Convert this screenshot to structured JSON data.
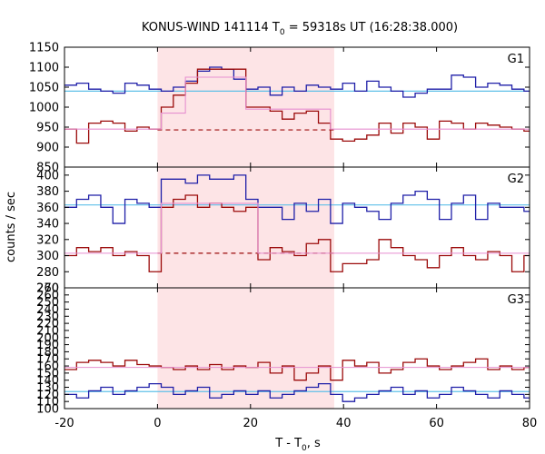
{
  "chart_data": {
    "type": "line",
    "title_main": "KONUS-WIND 141114 T",
    "title_sub": "0",
    "title_rest": " = 59318s UT (16:28:38.000)",
    "xlabel_main": "T - T",
    "xlabel_sub": "0",
    "xlabel_rest": ", s",
    "ylabel": "counts / sec",
    "xlim": [
      -20,
      80
    ],
    "x_ticks": [
      -20,
      0,
      20,
      40,
      60,
      80
    ],
    "shaded_interval": [
      0,
      38
    ],
    "bin_edges": [
      -20,
      -17.4,
      -14.8,
      -12.2,
      -9.6,
      -7,
      -4.4,
      -1.8,
      0.8,
      3.4,
      6,
      8.6,
      11.2,
      13.8,
      16.4,
      19,
      21.6,
      24.2,
      26.8,
      29.4,
      32,
      34.6,
      37.2,
      39.8,
      42.4,
      45,
      47.6,
      50.2,
      52.8,
      55.4,
      58,
      60.6,
      63.2,
      65.8,
      68.4,
      71,
      73.6,
      76.2,
      78.8,
      80
    ],
    "colors": {
      "blue": "#1f1fa8",
      "red": "#9b0a0a",
      "light_blue": "#5fc0e8",
      "pink": "#e68fd0",
      "shade": "#fde4e6"
    },
    "panels": [
      {
        "name": "G1",
        "ylim": [
          850,
          1150
        ],
        "y_ticks": [
          850,
          900,
          950,
          1000,
          1050,
          1100,
          1150
        ],
        "series": [
          {
            "color": "blue",
            "values": [
              1055,
              1060,
              1045,
              1040,
              1035,
              1060,
              1055,
              1045,
              1040,
              1050,
              1065,
              1090,
              1100,
              1095,
              1070,
              1045,
              1050,
              1030,
              1050,
              1040,
              1055,
              1050,
              1045,
              1060,
              1040,
              1065,
              1050,
              1040,
              1025,
              1035,
              1045,
              1045,
              1080,
              1075,
              1050,
              1060,
              1055,
              1045,
              1040
            ]
          },
          {
            "color": "red",
            "values": [
              945,
              910,
              960,
              965,
              960,
              940,
              950,
              945,
              1000,
              1030,
              1060,
              1095,
              1095,
              1095,
              1095,
              1000,
              1000,
              990,
              970,
              985,
              990,
              960,
              920,
              915,
              920,
              930,
              960,
              935,
              960,
              950,
              920,
              965,
              960,
              945,
              960,
              955,
              950,
              945,
              940
            ]
          },
          {
            "color": "pink",
            "values": [
              945,
              945,
              945,
              945,
              945,
              945,
              945,
              945,
              985,
              985,
              1075,
              1075,
              1075,
              1075,
              1075,
              995,
              995,
              995,
              995,
              995,
              995,
              995,
              945,
              945,
              945,
              945,
              945,
              945,
              945,
              945,
              945,
              945,
              945,
              945,
              945,
              945,
              945,
              945,
              945
            ]
          }
        ],
        "lines": [
          {
            "color": "light_blue",
            "y": 1040,
            "x": [
              -20,
              80
            ],
            "dashed": false
          },
          {
            "color": "red",
            "y": 943,
            "x": [
              0,
              38
            ],
            "dashed": true
          }
        ]
      },
      {
        "name": "G2",
        "ylim": [
          260,
          410
        ],
        "y_ticks": [
          260,
          280,
          300,
          320,
          340,
          360,
          380,
          400
        ],
        "series": [
          {
            "color": "blue",
            "values": [
              360,
              370,
              375,
              360,
              340,
              370,
              365,
              360,
              395,
              395,
              390,
              400,
              395,
              395,
              400,
              370,
              360,
              360,
              345,
              365,
              355,
              370,
              340,
              365,
              360,
              355,
              345,
              365,
              375,
              380,
              370,
              345,
              365,
              375,
              345,
              365,
              360,
              360,
              355
            ]
          },
          {
            "color": "red",
            "values": [
              300,
              310,
              305,
              310,
              300,
              305,
              300,
              280,
              360,
              370,
              375,
              360,
              365,
              360,
              355,
              360,
              295,
              310,
              305,
              300,
              315,
              320,
              280,
              290,
              290,
              295,
              320,
              310,
              300,
              295,
              285,
              300,
              310,
              300,
              295,
              305,
              300,
              280,
              300
            ]
          },
          {
            "color": "pink",
            "values": [
              303,
              303,
              303,
              303,
              303,
              303,
              303,
              303,
              365,
              365,
              365,
              365,
              365,
              365,
              365,
              365,
              303,
              303,
              303,
              303,
              303,
              303,
              303,
              303,
              303,
              303,
              303,
              303,
              303,
              303,
              303,
              303,
              303,
              303,
              303,
              303,
              303,
              303,
              303
            ]
          }
        ],
        "lines": [
          {
            "color": "light_blue",
            "y": 363,
            "x": [
              -20,
              80
            ],
            "dashed": false
          },
          {
            "color": "red",
            "y": 303,
            "x": [
              0,
              38
            ],
            "dashed": true
          }
        ]
      },
      {
        "name": "G3",
        "ylim": [
          100,
          270
        ],
        "y_ticks": [
          100,
          110,
          120,
          130,
          140,
          150,
          160,
          170,
          180,
          190,
          200,
          210,
          220,
          230,
          240,
          250,
          260,
          270
        ],
        "series": [
          {
            "color": "red",
            "values": [
              155,
              165,
              168,
              165,
              160,
              168,
              162,
              160,
              158,
              155,
              160,
              155,
              162,
              155,
              160,
              158,
              165,
              150,
              160,
              140,
              150,
              160,
              140,
              168,
              160,
              165,
              150,
              155,
              165,
              170,
              160,
              155,
              160,
              165,
              170,
              155,
              160,
              155,
              158
            ]
          },
          {
            "color": "blue",
            "values": [
              120,
              115,
              125,
              130,
              120,
              125,
              130,
              135,
              130,
              120,
              125,
              130,
              115,
              120,
              125,
              120,
              125,
              115,
              120,
              125,
              130,
              135,
              120,
              110,
              115,
              120,
              125,
              130,
              120,
              125,
              115,
              120,
              130,
              125,
              120,
              115,
              125,
              120,
              115
            ]
          },
          {
            "color": "pink",
            "values": [
              158,
              158,
              158,
              158,
              158,
              158,
              158,
              158,
              158,
              158,
              158,
              158,
              158,
              158,
              158,
              158,
              158,
              158,
              158,
              158,
              158,
              158,
              158,
              158,
              158,
              158,
              158,
              158,
              158,
              158,
              158,
              158,
              158,
              158,
              158,
              158,
              158,
              158,
              158
            ]
          }
        ],
        "lines": [
          {
            "color": "light_blue",
            "y": 124,
            "x": [
              -20,
              80
            ],
            "dashed": false
          }
        ]
      }
    ]
  }
}
